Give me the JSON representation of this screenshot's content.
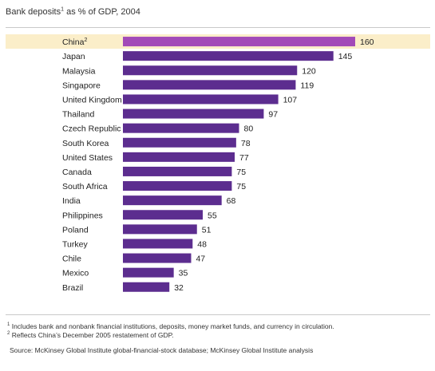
{
  "title": {
    "text": "Bank deposits",
    "sup": "1",
    "rest": " as % of GDP, 2004"
  },
  "colors": {
    "bar": "#5c2d8f",
    "highlight_bar": "#a24ab8",
    "highlight_bg": "#fbeec9"
  },
  "chart_data": {
    "type": "bar",
    "orientation": "horizontal",
    "title": "Bank deposits¹ as % of GDP, 2004",
    "categories": [
      "China",
      "Japan",
      "Malaysia",
      "Singapore",
      "United Kingdom",
      "Thailand",
      "Czech Republic",
      "South Korea",
      "United States",
      "Canada",
      "South Africa",
      "India",
      "Philippines",
      "Poland",
      "Turkey",
      "Chile",
      "Mexico",
      "Brazil"
    ],
    "category_superscripts": {
      "China": "2"
    },
    "values": [
      160,
      145,
      120,
      119,
      107,
      97,
      80,
      78,
      77,
      75,
      75,
      68,
      55,
      51,
      48,
      47,
      35,
      32
    ],
    "highlight": "China",
    "data_labels": true
  },
  "footnotes": [
    {
      "num": "1",
      "text": "Includes bank and nonbank financial institutions, deposits, money market funds, and currency in circulation."
    },
    {
      "num": "2",
      "text": "Reflects China’s December 2005 restatement of GDP."
    }
  ],
  "source": "Source: McKinsey Global Institute global-financial-stock database; McKinsey Global Institute analysis"
}
